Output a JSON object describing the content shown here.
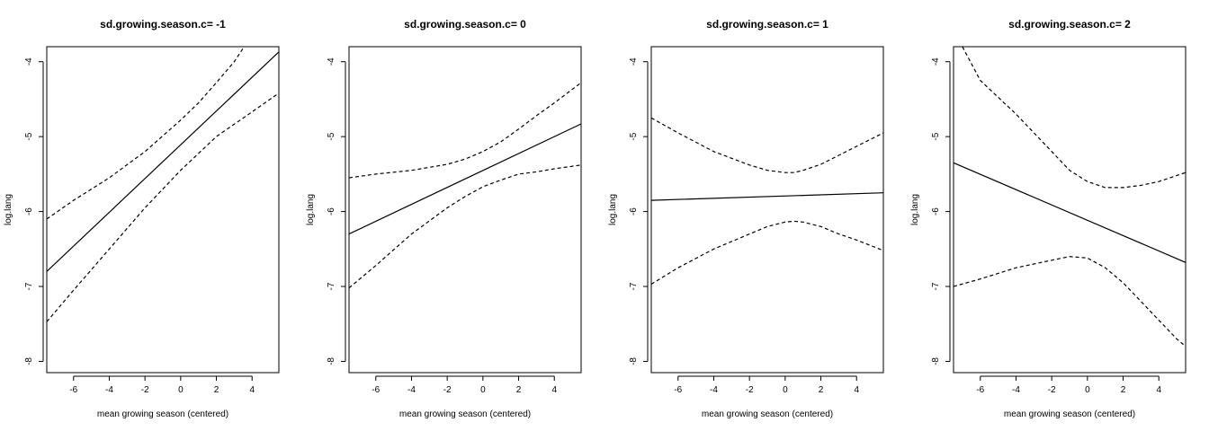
{
  "chart_data": [
    {
      "type": "line",
      "title": "sd.growing.season.c= -1",
      "xlabel": "mean growing season (centered)",
      "ylabel": "log.lang",
      "xlim": [
        -7.5,
        5.5
      ],
      "ylim": [
        -8.15,
        -3.8
      ],
      "xticks": [
        -6,
        -4,
        -2,
        0,
        2,
        4
      ],
      "yticks": [
        -4,
        -5,
        -6,
        -7,
        -8
      ],
      "grid": false,
      "series": [
        {
          "style": "solid",
          "x": [
            -7.5,
            5.5
          ],
          "y": [
            -6.8,
            -3.87
          ]
        },
        {
          "style": "dashed",
          "x": [
            -7.5,
            -6,
            -4,
            -2,
            0,
            1,
            2,
            3,
            3.5
          ],
          "y": [
            -6.1,
            -5.85,
            -5.55,
            -5.2,
            -4.78,
            -4.55,
            -4.28,
            -4.0,
            -3.82
          ]
        },
        {
          "style": "dashed",
          "x": [
            -7.5,
            -6,
            -4,
            -2,
            0,
            2,
            4,
            5.5
          ],
          "y": [
            -7.47,
            -7.05,
            -6.5,
            -5.95,
            -5.45,
            -5.0,
            -4.67,
            -4.42
          ]
        }
      ]
    },
    {
      "type": "line",
      "title": "sd.growing.season.c= 0",
      "xlabel": "mean growing season (centered)",
      "ylabel": "log.lang",
      "xlim": [
        -7.5,
        5.5
      ],
      "ylim": [
        -8.15,
        -3.8
      ],
      "xticks": [
        -6,
        -4,
        -2,
        0,
        2,
        4
      ],
      "yticks": [
        -4,
        -5,
        -6,
        -7,
        -8
      ],
      "grid": false,
      "series": [
        {
          "style": "solid",
          "x": [
            -7.5,
            5.5
          ],
          "y": [
            -6.3,
            -4.83
          ]
        },
        {
          "style": "dashed",
          "x": [
            -7.5,
            -6,
            -4,
            -2,
            -1,
            0,
            1,
            2,
            3,
            4,
            5.5
          ],
          "y": [
            -5.55,
            -5.5,
            -5.45,
            -5.37,
            -5.3,
            -5.2,
            -5.07,
            -4.9,
            -4.72,
            -4.55,
            -4.28
          ]
        },
        {
          "style": "dashed",
          "x": [
            -7.5,
            -6,
            -4,
            -2,
            -1,
            0,
            1,
            2,
            3,
            4,
            5.5
          ],
          "y": [
            -7.02,
            -6.72,
            -6.3,
            -5.95,
            -5.8,
            -5.67,
            -5.58,
            -5.5,
            -5.47,
            -5.43,
            -5.38
          ]
        }
      ]
    },
    {
      "type": "line",
      "title": "sd.growing.season.c= 1",
      "xlabel": "mean growing season (centered)",
      "ylabel": "log.lang",
      "xlim": [
        -7.5,
        5.5
      ],
      "ylim": [
        -8.15,
        -3.8
      ],
      "xticks": [
        -6,
        -4,
        -2,
        0,
        2,
        4
      ],
      "yticks": [
        -4,
        -5,
        -6,
        -7,
        -8
      ],
      "grid": false,
      "series": [
        {
          "style": "solid",
          "x": [
            -7.5,
            5.5
          ],
          "y": [
            -5.85,
            -5.75
          ]
        },
        {
          "style": "dashed",
          "x": [
            -7.5,
            -6,
            -4,
            -2,
            -1,
            0,
            0.5,
            1,
            2,
            3,
            4,
            5.5
          ],
          "y": [
            -4.75,
            -4.95,
            -5.2,
            -5.38,
            -5.45,
            -5.48,
            -5.48,
            -5.45,
            -5.37,
            -5.25,
            -5.13,
            -4.95
          ]
        },
        {
          "style": "dashed",
          "x": [
            -7.5,
            -6,
            -4,
            -2,
            -1,
            0,
            0.5,
            1,
            2,
            3,
            4,
            5.5
          ],
          "y": [
            -6.97,
            -6.75,
            -6.5,
            -6.3,
            -6.2,
            -6.14,
            -6.13,
            -6.14,
            -6.2,
            -6.3,
            -6.38,
            -6.52
          ]
        }
      ]
    },
    {
      "type": "line",
      "title": "sd.growing.season.c= 2",
      "xlabel": "mean growing season (centered)",
      "ylabel": "log.lang",
      "xlim": [
        -7.5,
        5.5
      ],
      "ylim": [
        -8.15,
        -3.8
      ],
      "xticks": [
        -6,
        -4,
        -2,
        0,
        2,
        4
      ],
      "yticks": [
        -4,
        -5,
        -6,
        -7,
        -8
      ],
      "grid": false,
      "series": [
        {
          "style": "solid",
          "x": [
            -7.5,
            5.5
          ],
          "y": [
            -5.35,
            -6.68
          ]
        },
        {
          "style": "dashed",
          "x": [
            -7.0,
            -6,
            -4,
            -2,
            -1,
            0,
            1,
            2,
            3,
            4,
            5.5
          ],
          "y": [
            -3.8,
            -4.25,
            -4.7,
            -5.2,
            -5.45,
            -5.6,
            -5.68,
            -5.68,
            -5.65,
            -5.6,
            -5.48
          ]
        },
        {
          "style": "dashed",
          "x": [
            -7.5,
            -6,
            -4,
            -3,
            -2,
            -1,
            0,
            1,
            2,
            3,
            4,
            5,
            5.5
          ],
          "y": [
            -7.0,
            -6.9,
            -6.75,
            -6.7,
            -6.65,
            -6.6,
            -6.62,
            -6.75,
            -6.95,
            -7.2,
            -7.45,
            -7.7,
            -7.8
          ]
        }
      ]
    }
  ]
}
